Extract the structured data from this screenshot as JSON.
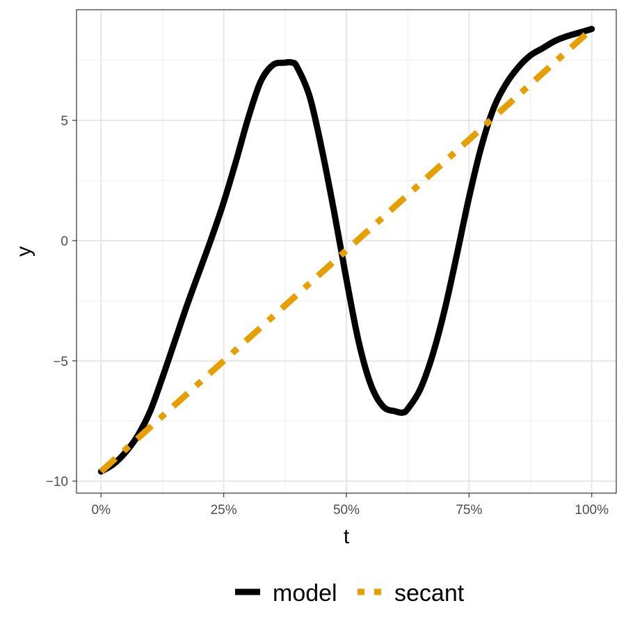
{
  "chart_data": {
    "type": "line",
    "xlabel": "t",
    "ylabel": "y",
    "xlim": [
      -0.05,
      1.05
    ],
    "ylim": [
      -10.5,
      9.6
    ],
    "x_ticks": [
      0,
      0.25,
      0.5,
      0.75,
      1.0
    ],
    "x_tick_labels": [
      "0%",
      "25%",
      "50%",
      "75%",
      "100%"
    ],
    "y_ticks": [
      -10,
      -5,
      0,
      5
    ],
    "y_tick_labels": [
      "−10",
      "−5",
      "0",
      "5"
    ],
    "grid": true,
    "legend_position": "bottom",
    "series": [
      {
        "name": "model",
        "style": "solid",
        "color": "#000000",
        "x": [
          0,
          0.025,
          0.05,
          0.075,
          0.1,
          0.125,
          0.15,
          0.175,
          0.2,
          0.225,
          0.25,
          0.275,
          0.3,
          0.325,
          0.35,
          0.375,
          0.39,
          0.4,
          0.425,
          0.45,
          0.475,
          0.5,
          0.525,
          0.55,
          0.575,
          0.6,
          0.615,
          0.625,
          0.65,
          0.675,
          0.7,
          0.725,
          0.75,
          0.775,
          0.8,
          0.825,
          0.85,
          0.875,
          0.9,
          0.925,
          0.95,
          0.975,
          1.0
        ],
        "y": [
          -9.6,
          -9.3,
          -8.8,
          -8.1,
          -7.1,
          -5.7,
          -4.2,
          -2.7,
          -1.3,
          0.1,
          1.6,
          3.3,
          5.1,
          6.6,
          7.3,
          7.4,
          7.4,
          7.2,
          6.0,
          3.8,
          1.2,
          -1.6,
          -4.2,
          -6.0,
          -6.9,
          -7.1,
          -7.15,
          -7.0,
          -6.2,
          -4.8,
          -2.9,
          -0.6,
          1.8,
          3.9,
          5.5,
          6.5,
          7.2,
          7.7,
          8.0,
          8.3,
          8.5,
          8.65,
          8.8
        ]
      },
      {
        "name": "secant",
        "style": "dashed",
        "color": "#E69F00",
        "x": [
          0,
          1.0
        ],
        "y": [
          -9.6,
          8.8
        ]
      }
    ]
  },
  "legend": {
    "items": [
      "model",
      "secant"
    ],
    "colors": [
      "#000000",
      "#E69F00"
    ]
  }
}
